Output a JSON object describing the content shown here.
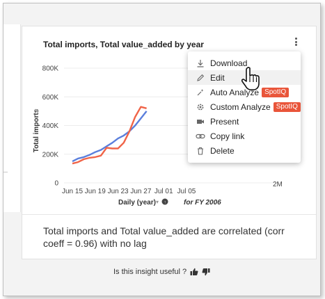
{
  "card": {
    "title": "Total imports, Total value_added by year",
    "insight_text": "Total imports and Total value_added are correlated (corr coeff = 0.96) with no lag"
  },
  "chart_data": {
    "type": "line",
    "x": [
      "Jun 15",
      "Jun 16",
      "Jun 17",
      "Jun 18",
      "Jun 19",
      "Jun 20",
      "Jun 21",
      "Jun 22",
      "Jun 23",
      "Jun 24",
      "Jun 25",
      "Jun 26",
      "Jun 27",
      "Jun 28"
    ],
    "x_tick_labels": [
      "Jun 15",
      "Jun 19",
      "Jun 23",
      "Jun 27",
      "Jul 01",
      "Jul 05"
    ],
    "y_tick_labels": [
      "0",
      "200K",
      "400K",
      "600K",
      "800K"
    ],
    "ylim": [
      0,
      800000
    ],
    "ylabel": "Total imports",
    "xlabel": "Daily (year)",
    "filter_label": "for FY 2006",
    "secondary_axis_label": "2M",
    "series": [
      {
        "color": "#5b7fdc",
        "values": [
          150000,
          170000,
          180000,
          195000,
          215000,
          230000,
          255000,
          280000,
          310000,
          330000,
          360000,
          400000,
          450000,
          500000
        ]
      },
      {
        "color": "#f06448",
        "values": [
          135000,
          145000,
          165000,
          175000,
          180000,
          190000,
          245000,
          240000,
          240000,
          280000,
          360000,
          460000,
          530000,
          520000
        ]
      }
    ]
  },
  "menu": {
    "items": [
      {
        "label": "Download",
        "icon": "download-icon"
      },
      {
        "label": "Edit",
        "icon": "pencil-icon"
      },
      {
        "label": "Auto Analyze",
        "icon": "sparkle-icon",
        "badge": "SpotIQ"
      },
      {
        "label": "Custom Analyze",
        "icon": "gear-icon",
        "badge": "SpotIQ"
      },
      {
        "label": "Present",
        "icon": "camera-icon"
      },
      {
        "label": "Copy link",
        "icon": "link-icon"
      },
      {
        "label": "Delete",
        "icon": "trash-icon"
      }
    ]
  },
  "feedback": {
    "question": "Is this insight useful ?"
  },
  "colors": {
    "accent_red": "#e9553a",
    "series_blue": "#5b7fdc",
    "series_red": "#f06448"
  }
}
